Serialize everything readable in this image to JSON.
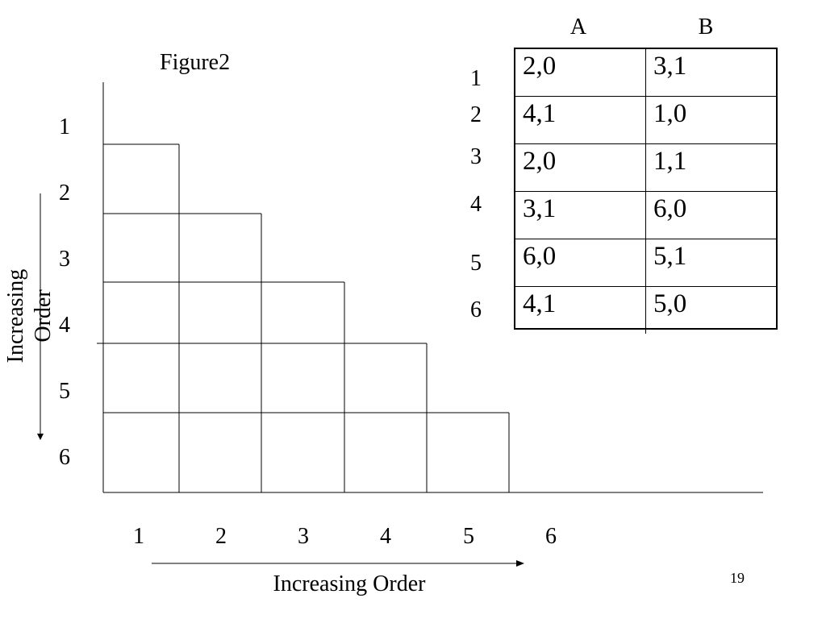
{
  "figure": {
    "title": "Figure2",
    "row_numbers": [
      "1",
      "2",
      "3",
      "4",
      "5",
      "6"
    ],
    "column_numbers": [
      "1",
      "2",
      "3",
      "4",
      "5",
      "6"
    ],
    "y_axis_label": "Increasing Order",
    "x_axis_label": "Increasing Order"
  },
  "table": {
    "column_headers": [
      "A",
      "B"
    ],
    "row_headers": [
      "1",
      "2",
      "3",
      "4",
      "5",
      "6"
    ],
    "rows": [
      [
        "2,0",
        "3,1"
      ],
      [
        "4,1",
        "1,0"
      ],
      [
        "2,0",
        "1,1"
      ],
      [
        "3,1",
        "6,0"
      ],
      [
        "6,0",
        "5,1"
      ],
      [
        "4,1",
        "5,0"
      ]
    ]
  },
  "slide": {
    "page_number": "19"
  }
}
